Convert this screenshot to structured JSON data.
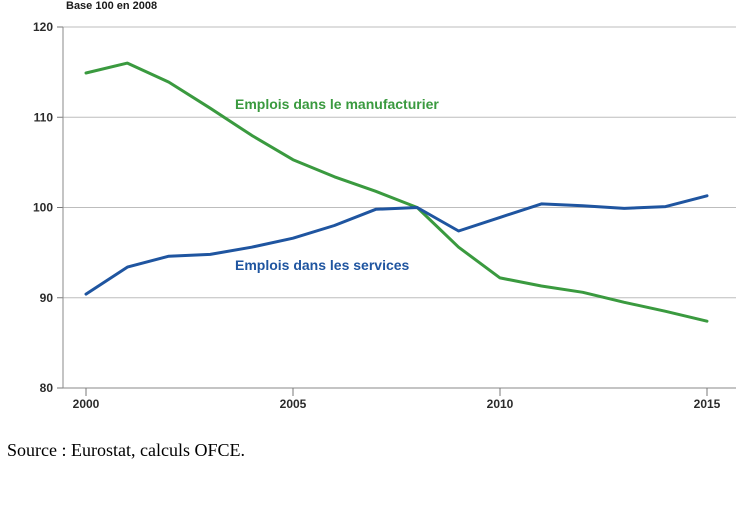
{
  "chart_data": {
    "type": "line",
    "unit_label": "Base 100 en 2008",
    "x": [
      2000,
      2001,
      2002,
      2003,
      2004,
      2005,
      2006,
      2007,
      2008,
      2009,
      2010,
      2011,
      2012,
      2013,
      2014,
      2015
    ],
    "series": [
      {
        "name": "Emplois dans le manufacturier",
        "color": "#3a9a3f",
        "values": [
          114.9,
          116.0,
          113.9,
          111.0,
          108.0,
          105.3,
          103.4,
          101.8,
          100.0,
          95.6,
          92.2,
          91.3,
          90.6,
          89.5,
          88.5,
          87.4
        ]
      },
      {
        "name": "Emplois dans les services",
        "color": "#1f55a0",
        "values": [
          90.4,
          93.4,
          94.6,
          94.8,
          95.6,
          96.6,
          98.0,
          99.8,
          100.0,
          97.4,
          98.9,
          100.4,
          100.2,
          99.9,
          100.1,
          101.3
        ]
      }
    ],
    "yticks": [
      80,
      90,
      100,
      110,
      120
    ],
    "xticks": [
      "2000",
      "2005",
      "2010",
      "2015"
    ],
    "ylim": [
      80,
      120
    ],
    "xlim": [
      2000,
      2015
    ],
    "grid": "horizontal"
  },
  "source": "Source : Eurostat, calculs OFCE."
}
